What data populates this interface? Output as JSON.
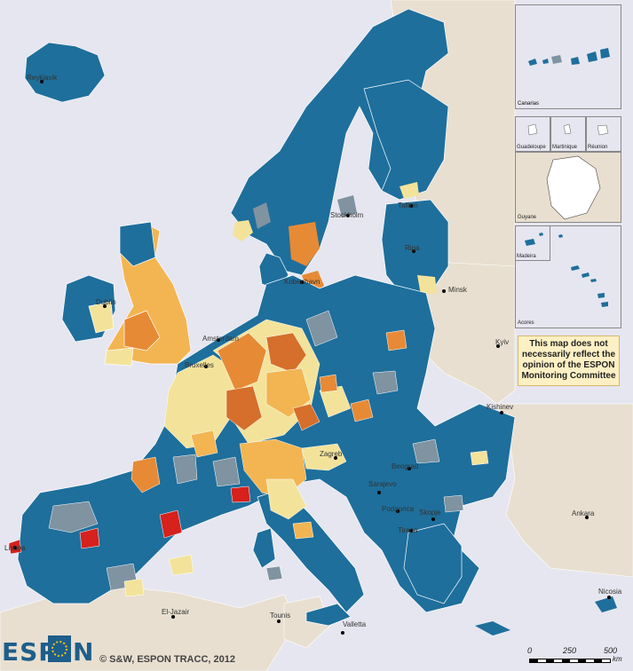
{
  "map": {
    "cities": [
      {
        "name": "Reykjavik"
      },
      {
        "name": "Dublin"
      },
      {
        "name": "Amsterdam"
      },
      {
        "name": "Bruxelles"
      },
      {
        "name": "Kobenhavn"
      },
      {
        "name": "Stockholm"
      },
      {
        "name": "Tallinn"
      },
      {
        "name": "Riga"
      },
      {
        "name": "Minsk"
      },
      {
        "name": "Kyiv"
      },
      {
        "name": "Kishinev"
      },
      {
        "name": "Zagreb"
      },
      {
        "name": "Beograd"
      },
      {
        "name": "Sarajevo"
      },
      {
        "name": "Podgorica"
      },
      {
        "name": "Skopje"
      },
      {
        "name": "Tirana"
      },
      {
        "name": "Ankara"
      },
      {
        "name": "Nicosia"
      },
      {
        "name": "El-Jazair"
      },
      {
        "name": "Tounis"
      },
      {
        "name": "Valletta"
      },
      {
        "name": "Lisboa"
      }
    ],
    "category_colors": {
      "blue": "#1e6f9c",
      "grey_blue": "#7f93a1",
      "light_yellow": "#f3e39a",
      "light_orange": "#f2b552",
      "orange": "#e78a35",
      "dark_orange": "#d56f2b",
      "red": "#d6211c",
      "non_espon_land": "#e8dfd0",
      "sea": "#e6e6f0"
    }
  },
  "insets": {
    "canarias": "Canarias",
    "guadeloupe": "Guadeloupe",
    "martinique": "Martinique",
    "reunion": "Réunion",
    "guyane": "Guyane",
    "madeira": "Madeira",
    "acores": "Acores"
  },
  "disclaimer": {
    "line1": "This map does not",
    "line2": "necessarily reflect the",
    "line3": "opinion of the ESPON",
    "line4": "Monitoring Committee"
  },
  "logo": {
    "text_left": "ESP",
    "text_right": "N"
  },
  "copyright": "© S&W, ESPON TRACC, 2012",
  "scale": {
    "tick0": "0",
    "tick1": "250",
    "tick2": "500",
    "unit": "km"
  }
}
